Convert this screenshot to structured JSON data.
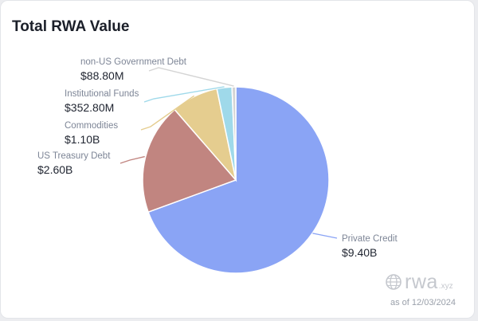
{
  "card": {
    "title": "Total RWA Value"
  },
  "chart_data": {
    "type": "pie",
    "title": "Total RWA Value",
    "unit": "USD",
    "slices": [
      {
        "label": "Private Credit",
        "value_text": "$9.40B",
        "value": 9.4,
        "color": "#8aa4f5"
      },
      {
        "label": "US Treasury Debt",
        "value_text": "$2.60B",
        "value": 2.6,
        "color": "#c18580"
      },
      {
        "label": "Commodities",
        "value_text": "$1.10B",
        "value": 1.1,
        "color": "#e5cd8f"
      },
      {
        "label": "Institutional Funds",
        "value_text": "$352.80M",
        "value": 0.3528,
        "color": "#9fd9ea"
      },
      {
        "label": "non-US Government Debt",
        "value_text": "$88.80M",
        "value": 0.0888,
        "color": "#d4d4d4"
      }
    ]
  },
  "footer": {
    "brand_word": "rwa",
    "brand_tld": ".xyz",
    "as_of": "as of 12/03/2024",
    "logo_icon": "globe-icon"
  }
}
